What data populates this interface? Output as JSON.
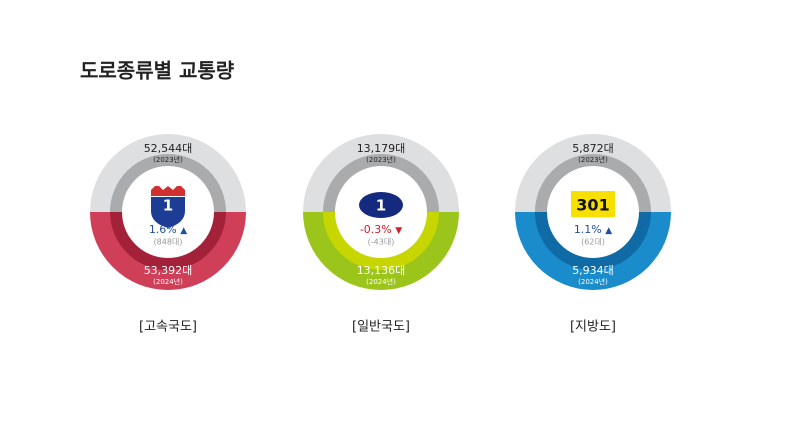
{
  "title": "도로종류별 교통량",
  "items": [
    {
      "label": "[고속국도]",
      "sign": "1",
      "prev": "52,544대",
      "prev_year": "(2023년)",
      "change": "1.6%",
      "direction": "▲",
      "diff": "(848대)",
      "curr": "53,392대",
      "curr_year": "(2024년)",
      "color": "#cf3f58",
      "ring_color": "#a3223a",
      "change_color": "#1f4f9e"
    },
    {
      "label": "[일반국도]",
      "sign": "1",
      "prev": "13,179대",
      "prev_year": "(2023년)",
      "change": "-0.3%",
      "direction": "▼",
      "diff": "(-43대)",
      "curr": "13,136대",
      "curr_year": "(2024년)",
      "color": "#9cc51c",
      "ring_color": "#c7d600",
      "change_color": "#d0202a"
    },
    {
      "label": "[지방도]",
      "sign": "301",
      "prev": "5,872대",
      "prev_year": "(2023년)",
      "change": "1.1%",
      "direction": "▲",
      "diff": "(62대)",
      "curr": "5,934대",
      "curr_year": "(2024년)",
      "color": "#1a8ccc",
      "ring_color": "#0f6aa6",
      "change_color": "#1f4f9e"
    }
  ]
}
